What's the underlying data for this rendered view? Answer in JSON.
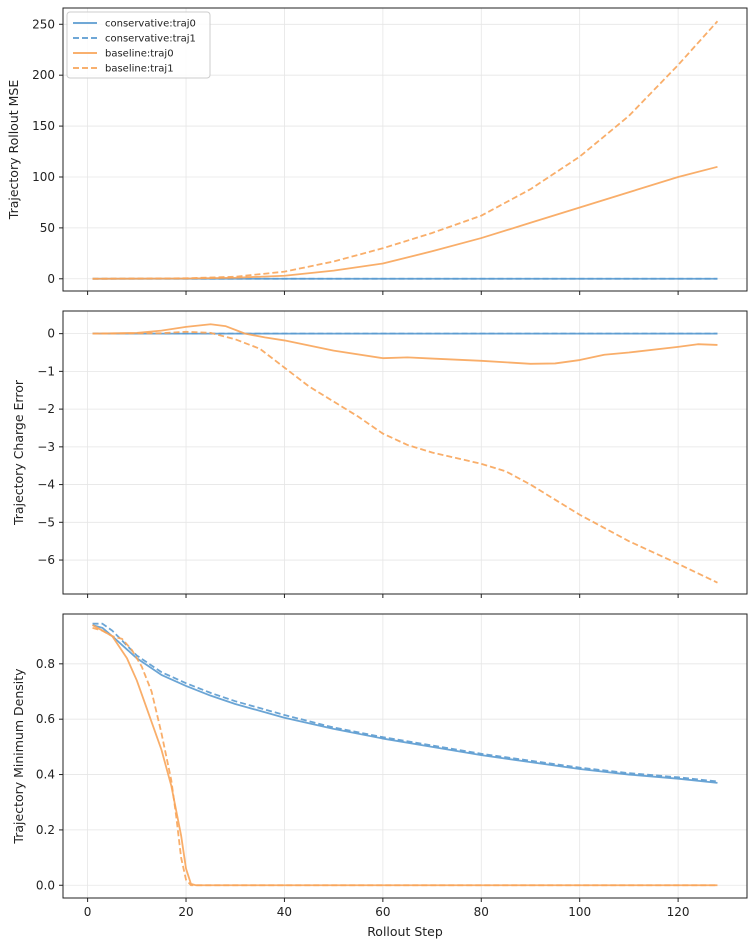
{
  "colors": {
    "conservative": "#5b9bd0",
    "baseline": "#f8a55a",
    "grid": "#e6e6e6",
    "frame": "#222222"
  },
  "chart_data": [
    {
      "type": "line",
      "ylabel": "Trajectory Rollout MSE",
      "xlabel": "",
      "xlim": [
        -5,
        134
      ],
      "ylim": [
        -12,
        266
      ],
      "xticks": [
        0,
        20,
        40,
        60,
        80,
        100,
        120
      ],
      "yticks": [
        0,
        50,
        100,
        150,
        200,
        250
      ],
      "grid": true,
      "legend": "top-left",
      "series": [
        {
          "name": "conservative:traj0",
          "color": "conservative",
          "dash": "solid",
          "x": [
            1,
            128
          ],
          "y": [
            0,
            0
          ]
        },
        {
          "name": "conservative:traj1",
          "color": "conservative",
          "dash": "dashed",
          "x": [
            1,
            128
          ],
          "y": [
            0,
            0
          ]
        },
        {
          "name": "baseline:traj0",
          "color": "baseline",
          "dash": "solid",
          "x": [
            1,
            20,
            30,
            40,
            50,
            60,
            70,
            80,
            90,
            100,
            110,
            120,
            128
          ],
          "y": [
            0,
            0.3,
            1,
            3,
            8,
            15,
            27,
            40,
            55,
            70,
            85,
            100,
            110
          ]
        },
        {
          "name": "baseline:traj1",
          "color": "baseline",
          "dash": "dashed",
          "x": [
            1,
            20,
            30,
            40,
            50,
            60,
            70,
            80,
            90,
            100,
            110,
            120,
            128
          ],
          "y": [
            0,
            0.5,
            2,
            7,
            17,
            30,
            45,
            62,
            88,
            120,
            160,
            210,
            253
          ]
        }
      ]
    },
    {
      "type": "line",
      "ylabel": "Trajectory Charge Error",
      "xlabel": "",
      "xlim": [
        -5,
        134
      ],
      "ylim": [
        -6.9,
        0.6
      ],
      "xticks": [
        0,
        20,
        40,
        60,
        80,
        100,
        120
      ],
      "yticks": [
        0,
        -1,
        -2,
        -3,
        -4,
        -5,
        -6
      ],
      "grid": true,
      "series": [
        {
          "name": "conservative:traj0",
          "color": "conservative",
          "dash": "solid",
          "x": [
            1,
            128
          ],
          "y": [
            0,
            0
          ]
        },
        {
          "name": "conservative:traj1",
          "color": "conservative",
          "dash": "dashed",
          "x": [
            1,
            128
          ],
          "y": [
            0,
            0
          ]
        },
        {
          "name": "baseline:traj0",
          "color": "baseline",
          "dash": "solid",
          "x": [
            1,
            10,
            15,
            20,
            25,
            28,
            32,
            36,
            40,
            50,
            60,
            65,
            70,
            80,
            90,
            95,
            100,
            105,
            110,
            120,
            124,
            128
          ],
          "y": [
            0,
            0.02,
            0.08,
            0.18,
            0.25,
            0.2,
            0.0,
            -0.1,
            -0.18,
            -0.45,
            -0.65,
            -0.63,
            -0.66,
            -0.72,
            -0.8,
            -0.79,
            -0.7,
            -0.56,
            -0.5,
            -0.35,
            -0.28,
            -0.3
          ]
        },
        {
          "name": "baseline:traj1",
          "color": "baseline",
          "dash": "dashed",
          "x": [
            1,
            15,
            20,
            25,
            30,
            35,
            40,
            45,
            50,
            55,
            60,
            65,
            70,
            75,
            80,
            85,
            90,
            100,
            110,
            120,
            128
          ],
          "y": [
            0,
            0.01,
            0.05,
            0.02,
            -0.15,
            -0.4,
            -0.9,
            -1.4,
            -1.8,
            -2.2,
            -2.65,
            -2.95,
            -3.15,
            -3.3,
            -3.45,
            -3.65,
            -4.0,
            -4.8,
            -5.5,
            -6.1,
            -6.6
          ]
        }
      ]
    },
    {
      "type": "line",
      "ylabel": "Trajectory Minimum Density",
      "xlabel": "Rollout Step",
      "xlim": [
        -5,
        134
      ],
      "ylim": [
        -0.046,
        0.98
      ],
      "xticks": [
        0,
        20,
        40,
        60,
        80,
        100,
        120
      ],
      "yticks": [
        0.0,
        0.2,
        0.4,
        0.6,
        0.8
      ],
      "grid": true,
      "series": [
        {
          "name": "conservative:traj0",
          "color": "conservative",
          "dash": "solid",
          "x": [
            1,
            3,
            5,
            10,
            15,
            20,
            25,
            30,
            40,
            50,
            60,
            70,
            80,
            90,
            100,
            110,
            120,
            128
          ],
          "y": [
            0.94,
            0.93,
            0.9,
            0.82,
            0.76,
            0.72,
            0.685,
            0.655,
            0.605,
            0.565,
            0.53,
            0.5,
            0.47,
            0.445,
            0.42,
            0.4,
            0.385,
            0.37
          ]
        },
        {
          "name": "conservative:traj1",
          "color": "conservative",
          "dash": "dashed",
          "x": [
            1,
            3,
            5,
            10,
            15,
            20,
            25,
            30,
            40,
            50,
            60,
            70,
            80,
            90,
            100,
            110,
            120,
            128
          ],
          "y": [
            0.945,
            0.945,
            0.92,
            0.83,
            0.77,
            0.73,
            0.695,
            0.665,
            0.615,
            0.57,
            0.535,
            0.505,
            0.475,
            0.45,
            0.425,
            0.405,
            0.39,
            0.375
          ]
        },
        {
          "name": "baseline:traj0",
          "color": "baseline",
          "dash": "solid",
          "x": [
            1,
            5,
            8,
            10,
            12,
            15,
            17,
            19,
            20,
            21,
            22,
            30,
            40,
            60,
            80,
            100,
            120,
            128
          ],
          "y": [
            0.94,
            0.9,
            0.82,
            0.74,
            0.64,
            0.49,
            0.36,
            0.18,
            0.06,
            0.005,
            0.0,
            0.0,
            0.0,
            0.0,
            0.0,
            0.0,
            0.0,
            0.0
          ]
        },
        {
          "name": "baseline:traj1",
          "color": "baseline",
          "dash": "dashed",
          "x": [
            1,
            3,
            5,
            7,
            9,
            11,
            13,
            15,
            17,
            18,
            19,
            20,
            21,
            22,
            30,
            40,
            60,
            80,
            100,
            120,
            128
          ],
          "y": [
            0.93,
            0.92,
            0.9,
            0.89,
            0.85,
            0.79,
            0.7,
            0.55,
            0.38,
            0.25,
            0.1,
            0.02,
            0.0,
            0.0,
            0.0,
            0.0,
            0.0,
            0.0,
            0.0,
            0.0,
            0.0
          ]
        }
      ]
    }
  ]
}
